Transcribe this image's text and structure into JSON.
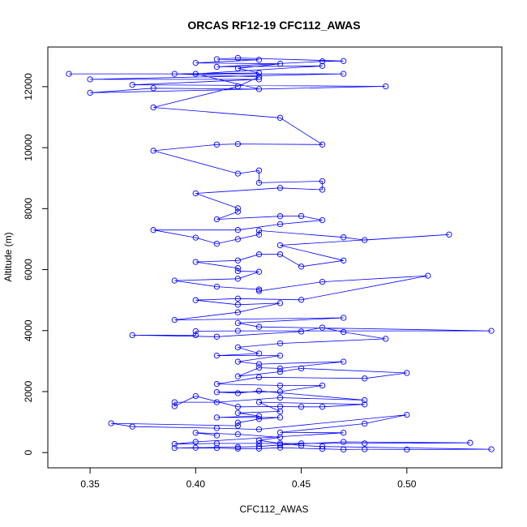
{
  "chart_data": {
    "type": "line",
    "title": "ORCAS RF12-19 CFC112_AWAS",
    "xlabel": "CFC112_AWAS",
    "ylabel": "Altitude (m)",
    "xlim": [
      0.33,
      0.545
    ],
    "ylim": [
      -500,
      13300
    ],
    "xticks": [
      0.35,
      0.4,
      0.45,
      0.5
    ],
    "xtick_labels": [
      "0.35",
      "0.40",
      "0.45",
      "0.50"
    ],
    "yticks": [
      0,
      2000,
      4000,
      6000,
      8000,
      10000,
      12000
    ],
    "ytick_labels": [
      "0",
      "2000",
      "4000",
      "6000",
      "8000",
      "10000",
      "12000"
    ],
    "grid": false,
    "series": [
      {
        "color": "#0000ff",
        "marker": "open-circle",
        "points": [
          [
            0.34,
            12420
          ],
          [
            0.47,
            12420
          ],
          [
            0.35,
            12240
          ],
          [
            0.43,
            12240
          ],
          [
            0.37,
            12060
          ],
          [
            0.49,
            12010
          ],
          [
            0.35,
            11800
          ],
          [
            0.38,
            11950
          ],
          [
            0.43,
            11920
          ],
          [
            0.4,
            12420
          ],
          [
            0.46,
            12680
          ],
          [
            0.41,
            12650
          ],
          [
            0.46,
            12830
          ],
          [
            0.47,
            12840
          ],
          [
            0.42,
            12940
          ],
          [
            0.41,
            12900
          ],
          [
            0.43,
            12880
          ],
          [
            0.4,
            12780
          ],
          [
            0.44,
            12750
          ],
          [
            0.42,
            12600
          ],
          [
            0.43,
            12450
          ],
          [
            0.39,
            12420
          ],
          [
            0.43,
            12320
          ],
          [
            0.42,
            12010
          ],
          [
            0.38,
            11320
          ],
          [
            0.44,
            10980
          ],
          [
            0.46,
            10100
          ],
          [
            0.42,
            10120
          ],
          [
            0.41,
            10100
          ],
          [
            0.38,
            9900
          ],
          [
            0.42,
            9150
          ],
          [
            0.43,
            9250
          ],
          [
            0.43,
            8850
          ],
          [
            0.46,
            8900
          ],
          [
            0.46,
            8620
          ],
          [
            0.44,
            8680
          ],
          [
            0.4,
            8500
          ],
          [
            0.42,
            8010
          ],
          [
            0.42,
            7900
          ],
          [
            0.41,
            7650
          ],
          [
            0.44,
            7750
          ],
          [
            0.45,
            7760
          ],
          [
            0.46,
            7620
          ],
          [
            0.44,
            7490
          ],
          [
            0.42,
            7300
          ],
          [
            0.38,
            7300
          ],
          [
            0.4,
            7050
          ],
          [
            0.41,
            6850
          ],
          [
            0.42,
            7000
          ],
          [
            0.43,
            7150
          ],
          [
            0.43,
            7280
          ],
          [
            0.47,
            7060
          ],
          [
            0.48,
            6970
          ],
          [
            0.52,
            7150
          ],
          [
            0.44,
            6800
          ],
          [
            0.47,
            6300
          ],
          [
            0.45,
            6100
          ],
          [
            0.44,
            6500
          ],
          [
            0.43,
            6500
          ],
          [
            0.42,
            6300
          ],
          [
            0.4,
            6250
          ],
          [
            0.42,
            6050
          ],
          [
            0.42,
            5950
          ],
          [
            0.43,
            5930
          ],
          [
            0.42,
            5700
          ],
          [
            0.39,
            5640
          ],
          [
            0.41,
            5440
          ],
          [
            0.43,
            5350
          ],
          [
            0.43,
            5300
          ],
          [
            0.46,
            5600
          ],
          [
            0.51,
            5800
          ],
          [
            0.45,
            5010
          ],
          [
            0.42,
            5050
          ],
          [
            0.4,
            5000
          ],
          [
            0.42,
            4850
          ],
          [
            0.44,
            4900
          ],
          [
            0.42,
            4600
          ],
          [
            0.39,
            4350
          ],
          [
            0.47,
            4420
          ],
          [
            0.42,
            4250
          ],
          [
            0.43,
            4120
          ],
          [
            0.54,
            3990
          ],
          [
            0.42,
            3990
          ],
          [
            0.4,
            3980
          ],
          [
            0.4,
            3850
          ],
          [
            0.37,
            3850
          ],
          [
            0.41,
            3800
          ],
          [
            0.45,
            3970
          ],
          [
            0.46,
            4100
          ],
          [
            0.47,
            3950
          ],
          [
            0.49,
            3730
          ],
          [
            0.44,
            3580
          ],
          [
            0.42,
            3450
          ],
          [
            0.43,
            3250
          ],
          [
            0.41,
            3180
          ],
          [
            0.44,
            3180
          ],
          [
            0.42,
            2980
          ],
          [
            0.43,
            2900
          ],
          [
            0.47,
            2980
          ],
          [
            0.44,
            2760
          ],
          [
            0.43,
            2780
          ],
          [
            0.42,
            2500
          ],
          [
            0.44,
            2650
          ],
          [
            0.45,
            2760
          ],
          [
            0.5,
            2610
          ],
          [
            0.48,
            2430
          ],
          [
            0.43,
            2470
          ],
          [
            0.41,
            2250
          ],
          [
            0.44,
            2200
          ],
          [
            0.46,
            2200
          ],
          [
            0.44,
            2000
          ],
          [
            0.41,
            1980
          ],
          [
            0.42,
            1950
          ],
          [
            0.43,
            2020
          ],
          [
            0.48,
            1720
          ],
          [
            0.44,
            1800
          ],
          [
            0.41,
            1650
          ],
          [
            0.39,
            1650
          ],
          [
            0.39,
            1520
          ],
          [
            0.4,
            1850
          ],
          [
            0.42,
            1500
          ],
          [
            0.44,
            1510
          ],
          [
            0.45,
            1500
          ],
          [
            0.46,
            1500
          ],
          [
            0.48,
            1580
          ],
          [
            0.43,
            1650
          ],
          [
            0.44,
            1350
          ],
          [
            0.42,
            1300
          ],
          [
            0.43,
            1200
          ],
          [
            0.41,
            1150
          ],
          [
            0.44,
            1150
          ],
          [
            0.43,
            1100
          ],
          [
            0.42,
            980
          ],
          [
            0.42,
            880
          ],
          [
            0.36,
            960
          ],
          [
            0.37,
            850
          ],
          [
            0.41,
            800
          ],
          [
            0.43,
            760
          ],
          [
            0.5,
            1240
          ],
          [
            0.48,
            950
          ],
          [
            0.44,
            660
          ],
          [
            0.47,
            650
          ],
          [
            0.4,
            350
          ],
          [
            0.39,
            280
          ],
          [
            0.41,
            300
          ],
          [
            0.43,
            300
          ],
          [
            0.45,
            300
          ],
          [
            0.48,
            300
          ],
          [
            0.53,
            320
          ],
          [
            0.47,
            350
          ],
          [
            0.44,
            250
          ],
          [
            0.43,
            200
          ],
          [
            0.42,
            180
          ],
          [
            0.4,
            160
          ],
          [
            0.39,
            150
          ],
          [
            0.41,
            150
          ],
          [
            0.42,
            130
          ],
          [
            0.43,
            130
          ],
          [
            0.44,
            160
          ],
          [
            0.46,
            120
          ],
          [
            0.47,
            100
          ],
          [
            0.48,
            110
          ],
          [
            0.5,
            100
          ],
          [
            0.54,
            110
          ],
          [
            0.46,
            200
          ],
          [
            0.45,
            230
          ],
          [
            0.44,
            300
          ],
          [
            0.43,
            400
          ],
          [
            0.44,
            500
          ],
          [
            0.42,
            600
          ],
          [
            0.4,
            650
          ],
          [
            0.41,
            560
          ]
        ]
      }
    ]
  }
}
